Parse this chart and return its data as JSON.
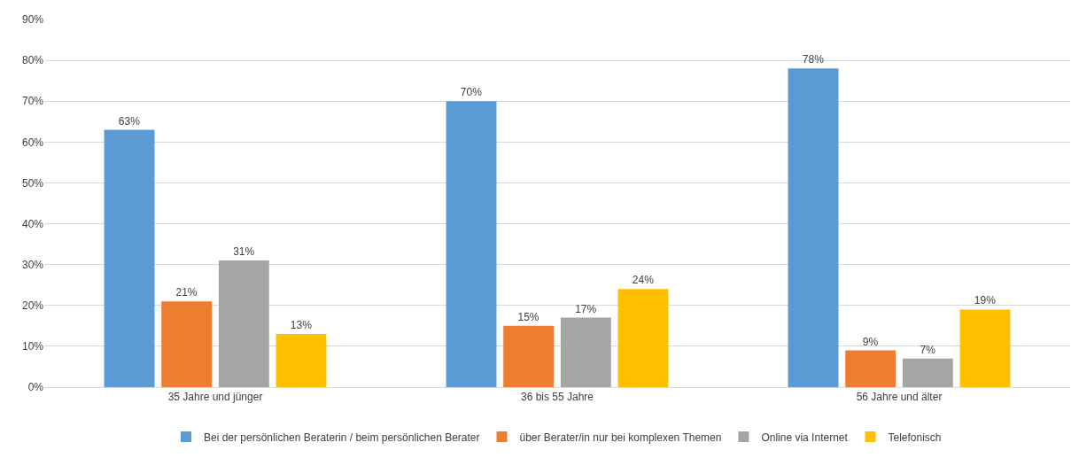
{
  "chart_data": {
    "type": "bar",
    "categories": [
      "35 Jahre und jünger",
      "36 bis 55 Jahre",
      "56 Jahre und älter"
    ],
    "series": [
      {
        "name": "Bei der persönlichen Beraterin / beim persönlichen Berater",
        "color": "#5b9bd5",
        "values": [
          63,
          70,
          78
        ],
        "value_labels": [
          "63%",
          "70%",
          "78%"
        ]
      },
      {
        "name": "über Berater/in nur bei komplexen Themen",
        "color": "#ed7d31",
        "values": [
          21,
          15,
          9
        ],
        "value_labels": [
          "21%",
          "15%",
          "9%"
        ]
      },
      {
        "name": "Online via Internet",
        "color": "#a5a5a5",
        "values": [
          31,
          17,
          7
        ],
        "value_labels": [
          "31%",
          "17%",
          "7%"
        ]
      },
      {
        "name": "Telefonisch",
        "color": "#ffc000",
        "values": [
          13,
          24,
          19
        ],
        "value_labels": [
          "13%",
          "24%",
          "19%"
        ]
      }
    ],
    "ylim": [
      0,
      90
    ],
    "yticks": [
      {
        "value": 0,
        "label": "0%"
      },
      {
        "value": 10,
        "label": "10%"
      },
      {
        "value": 20,
        "label": "20%"
      },
      {
        "value": 30,
        "label": "30%"
      },
      {
        "value": 40,
        "label": "40%"
      },
      {
        "value": 50,
        "label": "50%"
      },
      {
        "value": 60,
        "label": "60%"
      },
      {
        "value": 70,
        "label": "70%"
      },
      {
        "value": 80,
        "label": "80%"
      },
      {
        "value": 90,
        "label": "90%"
      }
    ],
    "grid": "y",
    "legend": "bottom"
  }
}
